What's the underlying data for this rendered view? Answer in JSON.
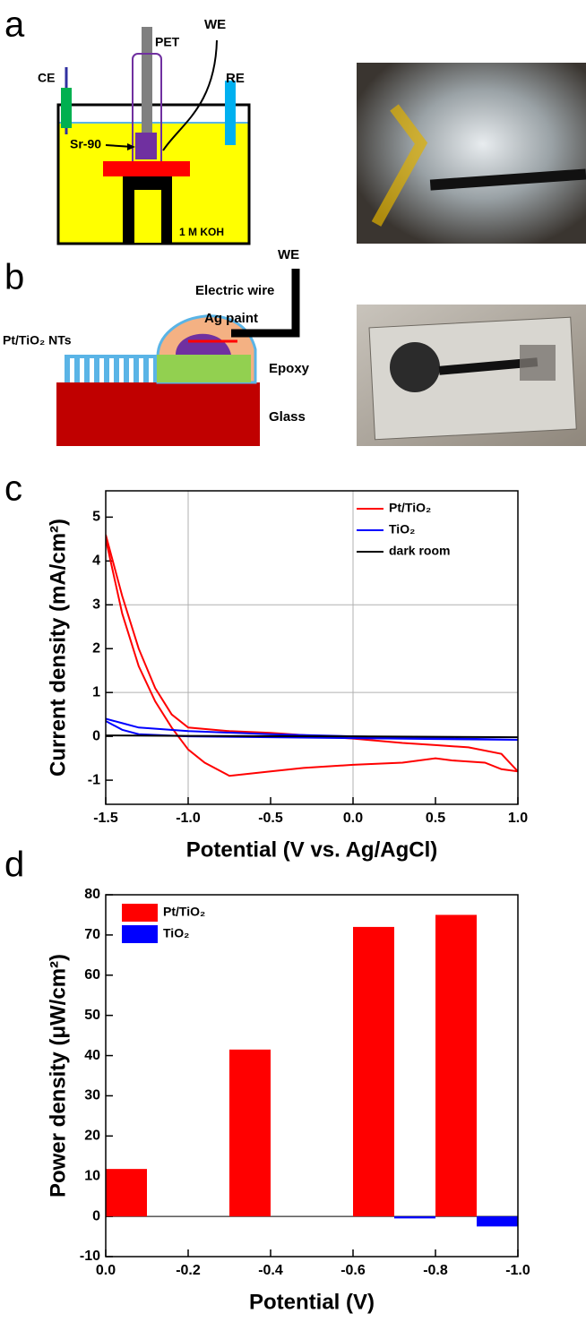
{
  "panels": [
    "a",
    "b",
    "c",
    "d"
  ],
  "diagram_a": {
    "ce": "CE",
    "pet": "PET",
    "we": "WE",
    "re": "RE",
    "source": "Sr-90",
    "electrolyte": "1 M KOH"
  },
  "diagram_b": {
    "we": "WE",
    "wire": "Electric wire",
    "paint": "Ag paint",
    "electrode": "Pt/TiO₂ NTs",
    "epoxy": "Epoxy",
    "glass": "Glass"
  },
  "chart_data": [
    {
      "type": "line",
      "x_label": "Potential (V vs. Ag/AgCl)",
      "y_label": "Current density (mA/cm²)",
      "xlim": [
        -1.5,
        1.0
      ],
      "ylim": [
        -1.55,
        5.6
      ],
      "xticks": [
        -1.5,
        {
          "value": -1.0,
          "label": "-1.0"
        },
        -0.5,
        {
          "value": 0.0,
          "label": "0.0"
        },
        0.5,
        {
          "value": 1.0,
          "label": "1.0"
        }
      ],
      "yticks": [
        -1,
        0,
        1,
        2,
        3,
        4,
        5
      ],
      "xgrid": [
        -1.0,
        0.0
      ],
      "ygrid": [
        1,
        3
      ],
      "legend": "upper right",
      "series": [
        {
          "name": "Pt/TiO₂",
          "color": "#ff0000",
          "x": [
            -1.5,
            -1.4,
            -1.3,
            -1.2,
            -1.1,
            -1.0,
            -0.75,
            -0.5,
            0.0,
            0.3,
            0.5,
            0.7,
            0.9,
            1.0,
            0.9,
            0.8,
            0.6,
            0.5,
            0.3,
            0.0,
            -0.3,
            -0.5,
            -0.75,
            -0.9,
            -1.0,
            -1.1,
            -1.2,
            -1.3,
            -1.4,
            -1.5
          ],
          "values": [
            4.6,
            3.2,
            2.0,
            1.1,
            0.5,
            0.2,
            0.12,
            0.08,
            -0.05,
            -0.15,
            -0.2,
            -0.25,
            -0.4,
            -0.8,
            -0.75,
            -0.6,
            -0.55,
            -0.5,
            -0.6,
            -0.65,
            -0.72,
            -0.8,
            -0.9,
            -0.6,
            -0.3,
            0.2,
            0.8,
            1.6,
            2.8,
            4.5
          ]
        },
        {
          "name": "TiO₂",
          "color": "#0000ff",
          "x": [
            -1.5,
            -1.4,
            -1.3,
            -1.0,
            -0.5,
            0.0,
            0.5,
            1.0,
            0.5,
            0.0,
            -0.5,
            -1.0,
            -1.3,
            -1.4,
            -1.5
          ],
          "values": [
            0.4,
            0.3,
            0.2,
            0.12,
            0.05,
            0.0,
            -0.04,
            -0.08,
            -0.06,
            -0.04,
            -0.02,
            0.0,
            0.05,
            0.15,
            0.35
          ]
        },
        {
          "name": "dark room",
          "color": "#000000",
          "x": [
            -1.5,
            -1.0,
            0.0,
            1.0
          ],
          "values": [
            0.02,
            0.01,
            0.0,
            -0.02
          ]
        }
      ]
    },
    {
      "type": "bar",
      "x_label": "Potential (V)",
      "y_label": "Power density (μW/cm²)",
      "xlim": [
        0.0,
        -1.0
      ],
      "ylim": [
        -10,
        80
      ],
      "bar_width": 0.1,
      "xticks": [
        {
          "value": 0.0,
          "label": "0.0"
        },
        -0.2,
        -0.4,
        -0.6,
        -0.8,
        {
          "value": -1.0,
          "label": "-1.0"
        }
      ],
      "yticks": [
        -10,
        0,
        10,
        20,
        30,
        40,
        50,
        60,
        70,
        80
      ],
      "legend": "upper left",
      "series": [
        {
          "name": "Pt/TiO₂",
          "color": "#ff0000",
          "x": [
            -0.05,
            -0.35,
            -0.65,
            -0.85
          ],
          "values": [
            11.8,
            41.5,
            72,
            75
          ]
        },
        {
          "name": "TiO₂",
          "color": "#0000ff",
          "x": [
            -0.75,
            -0.95
          ],
          "values": [
            -0.5,
            -2.5
          ]
        }
      ]
    }
  ]
}
